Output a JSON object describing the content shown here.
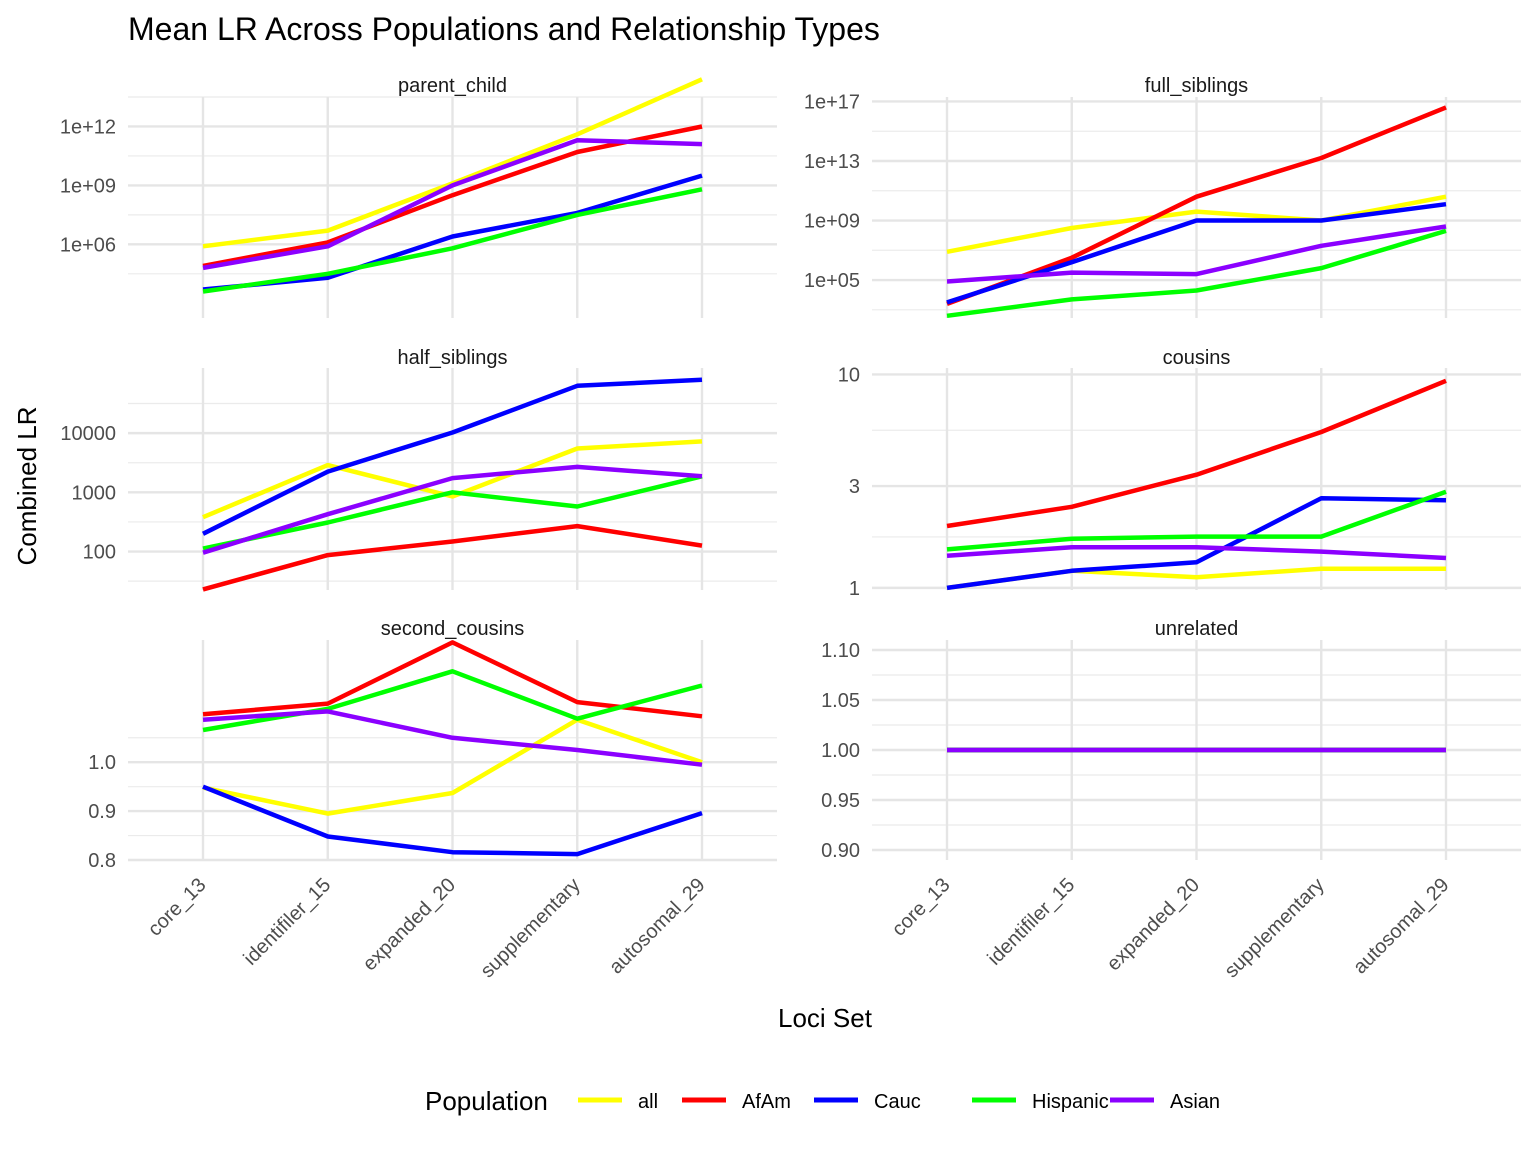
{
  "chart_data": {
    "type": "line",
    "title": "Mean LR Across Populations and Relationship Types",
    "xlabel": "Loci Set",
    "ylabel": "Combined LR",
    "categories": [
      "core_13",
      "identifiler_15",
      "expanded_20",
      "supplementary",
      "autosomal_29"
    ],
    "legend": {
      "title": "Population",
      "position": "bottom",
      "entries": [
        {
          "name": "all",
          "color": "#ffff00"
        },
        {
          "name": "AfAm",
          "color": "#ff0000"
        },
        {
          "name": "Cauc",
          "color": "#0000ff"
        },
        {
          "name": "Hispanic",
          "color": "#00ff00"
        },
        {
          "name": "Asian",
          "color": "#8b00ff"
        }
      ]
    },
    "panels": [
      {
        "name": "parent_child",
        "scale": "log10",
        "ylim": [
          2.25,
          13.5
        ],
        "ticks": [
          {
            "v": 6,
            "label": "1e+06"
          },
          {
            "v": 9,
            "label": "1e+09"
          },
          {
            "v": 12,
            "label": "1e+12"
          }
        ],
        "series": [
          {
            "name": "all",
            "values": [
              5.9,
              6.7,
              9.1,
              11.6,
              14.4
            ]
          },
          {
            "name": "AfAm",
            "values": [
              4.9,
              6.1,
              8.5,
              10.7,
              12.0
            ]
          },
          {
            "name": "Cauc",
            "values": [
              3.7,
              4.3,
              6.4,
              7.6,
              9.5
            ]
          },
          {
            "name": "Hispanic",
            "values": [
              3.6,
              4.5,
              5.8,
              7.5,
              8.8
            ]
          },
          {
            "name": "Asian",
            "values": [
              4.8,
              5.9,
              9.0,
              11.3,
              11.1
            ]
          }
        ]
      },
      {
        "name": "full_siblings",
        "scale": "log10",
        "ylim": [
          2.45,
          17.3
        ],
        "ticks": [
          {
            "v": 5,
            "label": "1e+05"
          },
          {
            "v": 9,
            "label": "1e+09"
          },
          {
            "v": 13,
            "label": "1e+13"
          },
          {
            "v": 17,
            "label": "1e+17"
          }
        ],
        "series": [
          {
            "name": "all",
            "values": [
              6.9,
              8.5,
              9.6,
              9.0,
              10.6
            ]
          },
          {
            "name": "AfAm",
            "values": [
              3.4,
              6.5,
              10.6,
              13.2,
              16.6
            ]
          },
          {
            "name": "Cauc",
            "values": [
              3.5,
              6.2,
              9.0,
              9.0,
              10.1
            ]
          },
          {
            "name": "Hispanic",
            "values": [
              2.6,
              3.7,
              4.3,
              5.8,
              8.3
            ]
          },
          {
            "name": "Asian",
            "values": [
              4.9,
              5.5,
              5.4,
              7.3,
              8.6
            ]
          }
        ]
      },
      {
        "name": "half_siblings",
        "scale": "log10",
        "ylim": [
          1.35,
          5.1
        ],
        "ticks": [
          {
            "v": 2,
            "label": "100"
          },
          {
            "v": 3,
            "label": "1000"
          },
          {
            "v": 4,
            "label": "10000"
          }
        ],
        "series": [
          {
            "name": "all",
            "values": [
              2.58,
              3.46,
              2.93,
              3.74,
              3.86
            ]
          },
          {
            "name": "AfAm",
            "values": [
              1.36,
              1.94,
              2.17,
              2.43,
              2.1
            ]
          },
          {
            "name": "Cauc",
            "values": [
              2.3,
              3.35,
              4.01,
              4.8,
              4.9
            ]
          },
          {
            "name": "Hispanic",
            "values": [
              2.05,
              2.49,
              3.0,
              2.76,
              3.27
            ]
          },
          {
            "name": "Asian",
            "values": [
              1.98,
              2.63,
              3.24,
              3.43,
              3.27
            ]
          }
        ]
      },
      {
        "name": "cousins",
        "scale": "log10",
        "ylim": [
          -0.01,
          1.03
        ],
        "ticks": [
          {
            "v": 0,
            "label": "1"
          },
          {
            "v": 0.4771,
            "label": "3"
          },
          {
            "v": 1,
            "label": "10"
          }
        ],
        "series": [
          {
            "name": "all",
            "values": [
              0.0,
              0.08,
              0.05,
              0.09,
              0.09
            ]
          },
          {
            "name": "AfAm",
            "values": [
              0.29,
              0.38,
              0.53,
              0.73,
              0.97
            ]
          },
          {
            "name": "Cauc",
            "values": [
              0.0,
              0.08,
              0.12,
              0.42,
              0.41
            ]
          },
          {
            "name": "Hispanic",
            "values": [
              0.18,
              0.23,
              0.24,
              0.24,
              0.45
            ]
          },
          {
            "name": "Asian",
            "values": [
              0.15,
              0.19,
              0.19,
              0.17,
              0.14
            ]
          }
        ]
      },
      {
        "name": "second_cousins",
        "scale": "linear",
        "ylim": [
          0.8,
          1.25
        ],
        "ticks": [
          {
            "v": 0.8,
            "label": "0.8"
          },
          {
            "v": 0.9,
            "label": "0.9"
          },
          {
            "v": 1.0,
            "label": "1.0"
          }
        ],
        "series": [
          {
            "name": "all",
            "values": [
              0.948,
              0.895,
              0.937,
              1.087,
              1.0
            ]
          },
          {
            "name": "AfAm",
            "values": [
              1.098,
              1.12,
              1.245,
              1.123,
              1.094
            ]
          },
          {
            "name": "Cauc",
            "values": [
              0.95,
              0.848,
              0.816,
              0.812,
              0.896
            ]
          },
          {
            "name": "Hispanic",
            "values": [
              1.066,
              1.109,
              1.186,
              1.089,
              1.157
            ]
          },
          {
            "name": "Asian",
            "values": [
              1.087,
              1.104,
              1.05,
              1.025,
              0.995
            ]
          }
        ]
      },
      {
        "name": "unrelated",
        "scale": "linear",
        "ylim": [
          0.89,
          1.11
        ],
        "ticks": [
          {
            "v": 0.9,
            "label": "0.90"
          },
          {
            "v": 0.95,
            "label": "0.95"
          },
          {
            "v": 1.0,
            "label": "1.00"
          },
          {
            "v": 1.05,
            "label": "1.05"
          },
          {
            "v": 1.1,
            "label": "1.10"
          }
        ],
        "series": [
          {
            "name": "all",
            "values": [
              1.0,
              1.0,
              1.0,
              1.0,
              1.0
            ]
          },
          {
            "name": "AfAm",
            "values": [
              1.0,
              1.0,
              1.0,
              1.0,
              1.0
            ]
          },
          {
            "name": "Cauc",
            "values": [
              1.0,
              1.0,
              1.0,
              1.0,
              1.0
            ]
          },
          {
            "name": "Hispanic",
            "values": [
              1.0,
              1.0,
              1.0,
              1.0,
              1.0
            ]
          },
          {
            "name": "Asian",
            "values": [
              1.0,
              1.0,
              1.0,
              1.0,
              1.0
            ]
          }
        ]
      }
    ]
  }
}
